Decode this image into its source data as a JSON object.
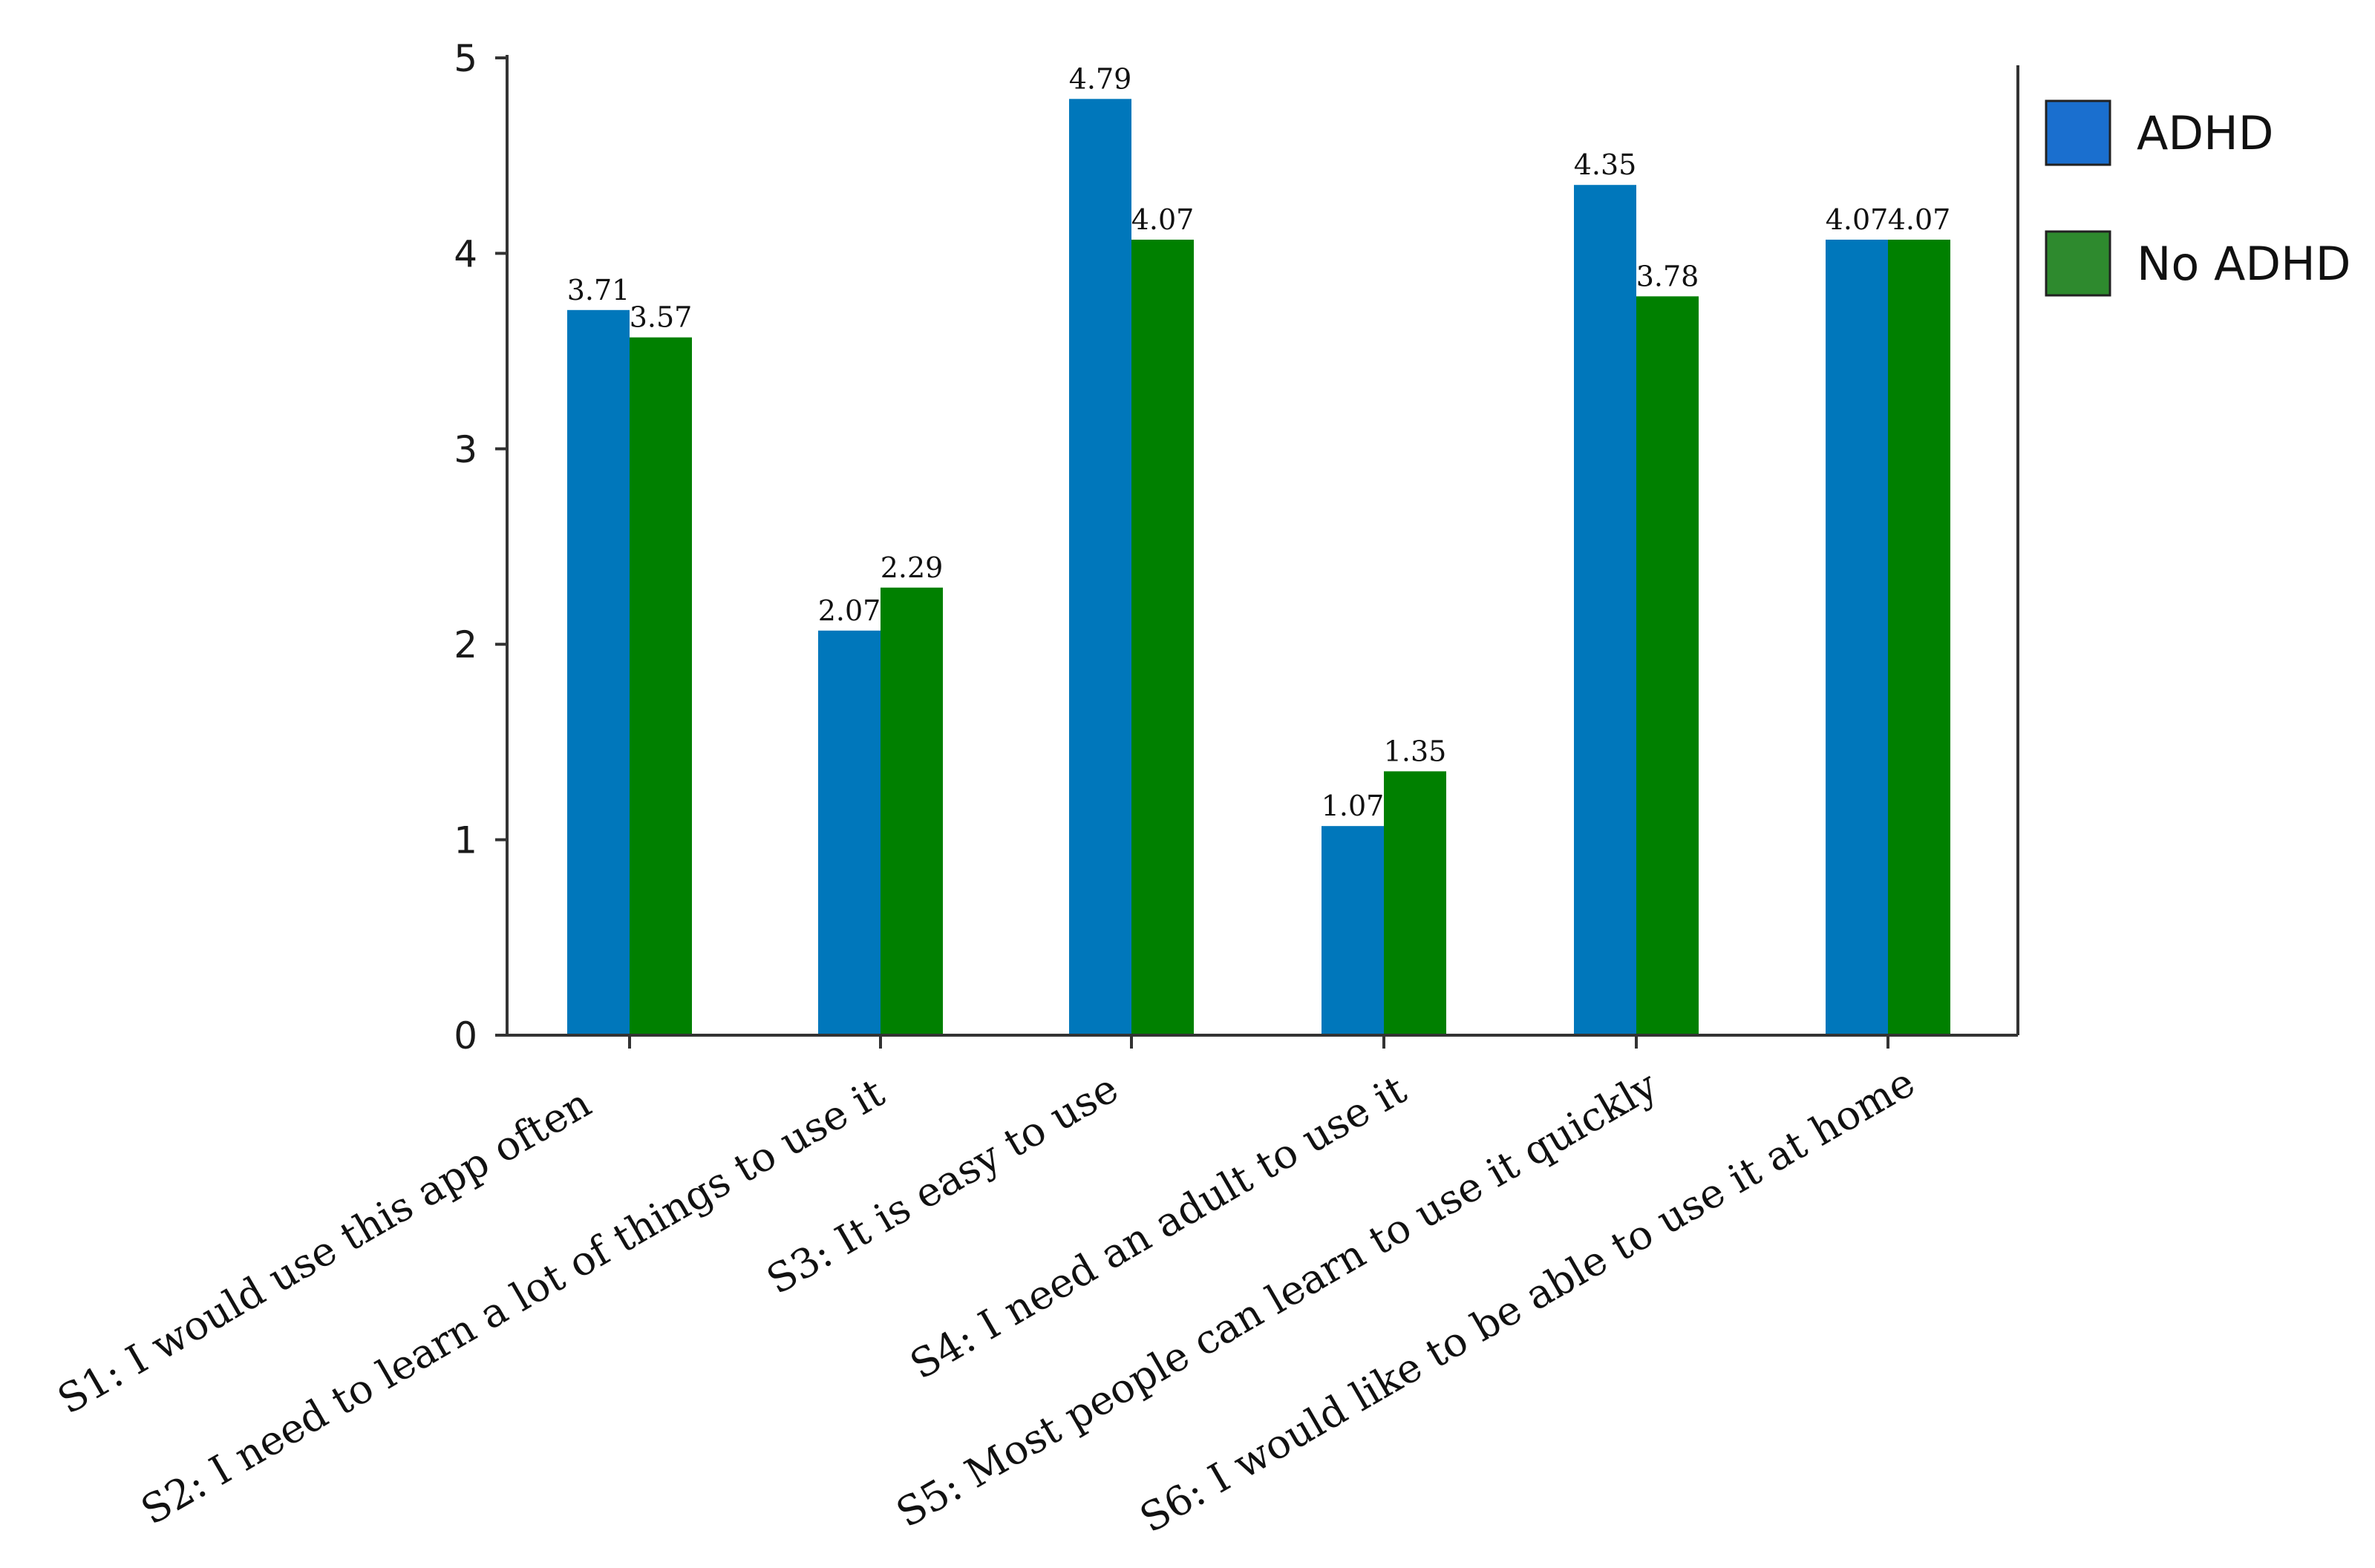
{
  "chart_data": {
    "type": "bar",
    "categories": [
      "S1: I would use this app often",
      "S2: I need to learn a lot of things to use it",
      "S3: It is easy to use",
      "S4: I need an adult to use it",
      "S5: Most people can learn to use it quickly",
      "S6: I would like to be able to use it at home"
    ],
    "series": [
      {
        "name": "ADHD",
        "values": [
          3.71,
          2.07,
          4.79,
          1.07,
          4.35,
          4.07
        ],
        "color": "#0077bb",
        "labels": [
          "3.71",
          "2.07",
          "4.79",
          "1.07",
          "4.35",
          "4.07"
        ]
      },
      {
        "name": "No ADHD",
        "values": [
          3.57,
          2.29,
          4.07,
          1.35,
          3.78,
          4.07
        ],
        "color": "#008000",
        "labels": [
          "3.57",
          "2.29",
          "4.07",
          "1.35",
          "3.78",
          "4.07"
        ]
      }
    ],
    "legend_colors": {
      "ADHD": "#1a6fcf",
      "No ADHD": "#2e8a2e"
    },
    "y_ticks": [
      "0",
      "1",
      "2",
      "3",
      "4",
      "5"
    ],
    "ylim": [
      0,
      5
    ],
    "grid": false,
    "legend_position": "top-right"
  }
}
